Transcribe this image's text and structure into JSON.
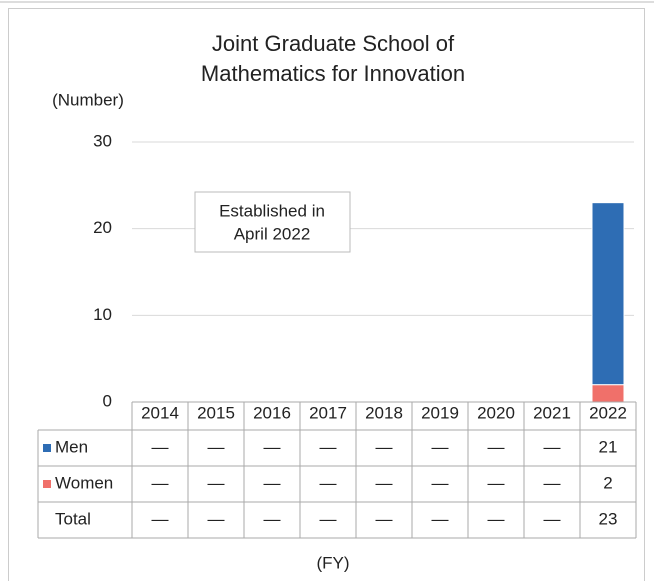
{
  "chart_data": {
    "type": "stacked_bar",
    "title": [
      "Joint Graduate School of",
      "Mathematics for Innovation"
    ],
    "y_label": "(Number)",
    "x_label": "(FY)",
    "annotation": [
      "Established in",
      "April 2022"
    ],
    "categories": [
      "2014",
      "2015",
      "2016",
      "2017",
      "2018",
      "2019",
      "2020",
      "2021",
      "2022"
    ],
    "series": [
      {
        "name": "Men",
        "color": "#2e6db4",
        "values": [
          null,
          null,
          null,
          null,
          null,
          null,
          null,
          null,
          21
        ],
        "value_labels": [
          "—",
          "—",
          "—",
          "—",
          "—",
          "—",
          "—",
          "—",
          "21"
        ]
      },
      {
        "name": "Women",
        "color": "#f0706a",
        "values": [
          null,
          null,
          null,
          null,
          null,
          null,
          null,
          null,
          2
        ],
        "value_labels": [
          "—",
          "—",
          "—",
          "—",
          "—",
          "—",
          "—",
          "—",
          "2"
        ]
      }
    ],
    "stack_order": [
      "Women",
      "Men"
    ],
    "total": {
      "name": "Total",
      "values": [
        null,
        null,
        null,
        null,
        null,
        null,
        null,
        null,
        23
      ],
      "value_labels": [
        "—",
        "—",
        "—",
        "—",
        "—",
        "—",
        "—",
        "—",
        "23"
      ]
    },
    "ylim": [
      0,
      30
    ],
    "yticks": [
      0,
      10,
      20,
      30
    ],
    "grid": true
  }
}
